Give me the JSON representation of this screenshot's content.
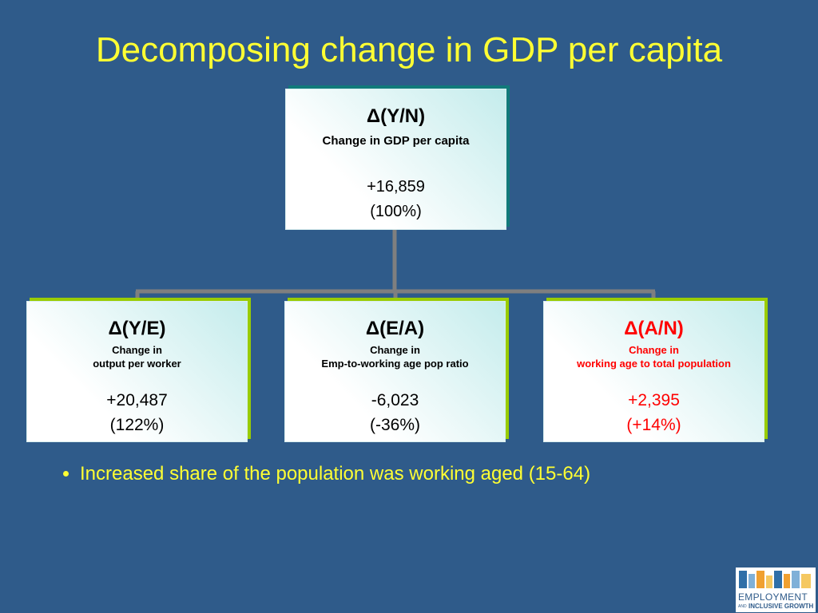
{
  "title": "Decomposing change in GDP per capita",
  "nodes": [
    {
      "symbol": "Δ(Y/N)",
      "label_lines": [
        "Change in GDP per capita"
      ],
      "value": "+16,859",
      "share": "(100%)",
      "highlight": false
    },
    {
      "symbol": "Δ(Y/E)",
      "label_lines": [
        "Change in",
        "output per worker"
      ],
      "value": "+20,487",
      "share": "(122%)",
      "highlight": false
    },
    {
      "symbol": "Δ(E/A)",
      "label_lines": [
        "Change in",
        "Emp-to-working age pop ratio"
      ],
      "value": "-6,023",
      "share": "(-36%)",
      "highlight": false
    },
    {
      "symbol": "Δ(A/N)",
      "label_lines": [
        "Change in",
        "working age to total population"
      ],
      "value": "+2,395",
      "share": "(+14%)",
      "highlight": true
    }
  ],
  "bullets": [
    "Increased share of the population was working aged (15-64)"
  ],
  "logo": {
    "line1": "EMPLOYMENT",
    "small": "AND",
    "line2": "INCLUSIVE GROWTH"
  }
}
